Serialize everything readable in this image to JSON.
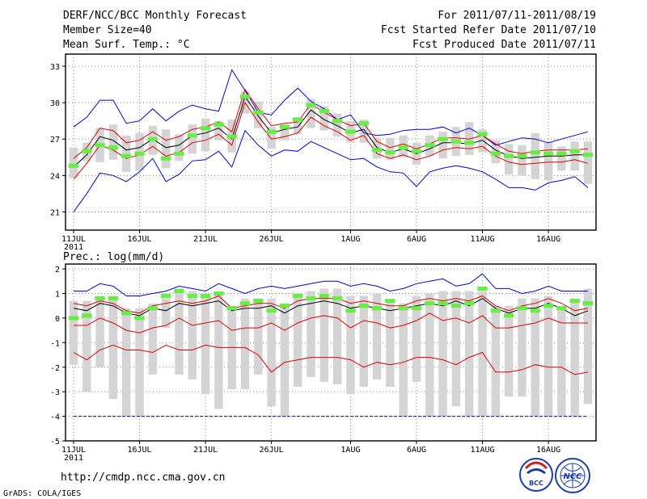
{
  "header": {
    "title": "DERF/NCC/BCC Monthly Forecast",
    "member_size": "Member Size=40",
    "variable": "Mean Surf. Temp.: °C",
    "period": "For 2011/07/11-2011/08/19",
    "start_date": "Fcst Started Refer Date 2011/07/10",
    "produced_date": "Fcst Produced Date 2011/07/11"
  },
  "footer": {
    "url": "http://cmdp.ncc.cma.gov.cn",
    "credit": "GrADS: COLA/IGES",
    "logo_left": "BCC",
    "logo_right": "NCC"
  },
  "colors": {
    "box": "#d4d4d4",
    "median": "#66ee44",
    "envelope": "#0000dd",
    "mean": "#000000",
    "spread": "#dd0000",
    "floor": "#0000dd"
  },
  "chart_data": [
    {
      "type": "line",
      "title": "Mean Surf. Temp.: °C",
      "x_labels": [
        "11JUL",
        "16JUL",
        "21JUL",
        "26JUL",
        "1AUG",
        "6AUG",
        "11AUG",
        "16AUG"
      ],
      "x_label_days": [
        1,
        6,
        11,
        16,
        22,
        27,
        32,
        37
      ],
      "year_label": "2011",
      "days": 40,
      "ylim": [
        19.5,
        34
      ],
      "yticks": [
        21,
        24,
        27,
        30,
        33
      ],
      "series": [
        {
          "name": "max",
          "values": [
            28.0,
            28.8,
            30.2,
            30.2,
            28.3,
            28.5,
            29.5,
            28.5,
            29.3,
            29.8,
            29.5,
            29.3,
            32.7,
            31.0,
            29.2,
            29.0,
            30.2,
            31.2,
            30.1,
            29.5,
            28.6,
            29.0,
            27.5,
            27.3,
            27.4,
            27.7,
            27.8,
            27.8,
            28.0,
            27.5,
            27.9,
            27.3,
            26.5,
            26.8,
            27.1,
            27.0,
            26.7,
            27.0,
            27.3,
            27.6
          ]
        },
        {
          "name": "upper",
          "values": [
            25.4,
            26.3,
            27.9,
            27.7,
            26.7,
            26.9,
            27.6,
            26.9,
            27.2,
            27.8,
            28.0,
            28.4,
            27.6,
            31.1,
            29.5,
            28.1,
            28.3,
            28.4,
            29.9,
            29.2,
            28.6,
            28.1,
            28.3,
            26.8,
            26.3,
            26.6,
            26.2,
            26.6,
            27.1,
            27.1,
            27.0,
            27.3,
            26.6,
            26.0,
            25.8,
            26.0,
            26.1,
            26.1,
            26.1,
            26.2
          ]
        },
        {
          "name": "mean",
          "values": [
            24.7,
            25.7,
            27.2,
            26.9,
            26.1,
            26.3,
            27.0,
            26.3,
            26.5,
            27.3,
            27.5,
            27.9,
            27.0,
            30.5,
            28.9,
            27.5,
            27.8,
            28.0,
            29.4,
            28.6,
            28.1,
            27.5,
            27.8,
            26.3,
            25.9,
            26.2,
            25.8,
            26.2,
            26.7,
            26.7,
            26.6,
            26.9,
            26.1,
            25.6,
            25.4,
            25.5,
            25.6,
            25.6,
            25.7,
            25.7
          ]
        },
        {
          "name": "lower",
          "values": [
            23.7,
            25.0,
            26.5,
            26.1,
            25.4,
            25.7,
            26.4,
            25.6,
            25.9,
            26.7,
            26.9,
            27.4,
            26.5,
            30.0,
            28.4,
            27.0,
            27.2,
            27.5,
            28.8,
            28.1,
            27.6,
            26.9,
            27.3,
            25.8,
            25.4,
            25.7,
            25.3,
            25.6,
            26.1,
            26.3,
            26.2,
            26.4,
            25.6,
            25.1,
            24.9,
            25.0,
            25.1,
            25.1,
            25.3,
            25.0
          ]
        },
        {
          "name": "min",
          "values": [
            21.0,
            22.5,
            24.2,
            24.0,
            23.5,
            24.3,
            25.4,
            23.5,
            24.1,
            25.2,
            25.3,
            26.0,
            24.7,
            27.7,
            26.5,
            25.6,
            26.1,
            26.0,
            26.8,
            26.3,
            25.8,
            25.3,
            25.4,
            24.7,
            24.3,
            24.2,
            23.1,
            24.3,
            24.6,
            24.8,
            24.6,
            24.3,
            23.7,
            23.0,
            23.0,
            22.8,
            23.4,
            23.6,
            23.9,
            23.0
          ]
        },
        {
          "name": "box_high",
          "values": [
            26.3,
            26.7,
            27.9,
            28.2,
            27.3,
            27.5,
            28.1,
            27.8,
            27.4,
            28.2,
            28.7,
            28.5,
            28.6,
            30.9,
            30.1,
            28.0,
            28.2,
            28.8,
            30.3,
            29.7,
            29.1,
            28.5,
            28.6,
            27.1,
            27.1,
            27.3,
            26.7,
            27.3,
            27.6,
            28.0,
            28.4,
            27.8,
            26.9,
            26.6,
            26.5,
            27.5,
            26.7,
            26.4,
            26.8,
            26.8
          ]
        },
        {
          "name": "box_low",
          "values": [
            23.8,
            25.2,
            25.1,
            25.3,
            24.3,
            24.4,
            25.7,
            24.6,
            25.2,
            25.8,
            26.0,
            26.9,
            25.9,
            29.1,
            27.9,
            26.2,
            26.9,
            27.4,
            27.9,
            27.7,
            27.2,
            26.7,
            26.7,
            25.4,
            25.3,
            25.5,
            24.9,
            25.6,
            25.4,
            25.6,
            25.7,
            25.9,
            25.0,
            24.1,
            24.0,
            23.7,
            23.6,
            24.4,
            24.4,
            23.3
          ]
        },
        {
          "name": "median",
          "values": [
            24.8,
            26.0,
            26.5,
            26.3,
            25.6,
            25.8,
            27.0,
            25.4,
            25.8,
            27.3,
            27.9,
            28.2,
            27.2,
            30.5,
            29.2,
            27.6,
            28.0,
            28.6,
            29.8,
            29.3,
            28.5,
            27.6,
            28.3,
            26.1,
            25.9,
            26.3,
            26.0,
            26.5,
            27.0,
            26.8,
            26.7,
            27.4,
            25.8,
            25.6,
            25.6,
            25.9,
            25.8,
            25.8,
            26.0,
            25.7
          ]
        }
      ]
    },
    {
      "type": "line",
      "title": "Prec.: log(mm/d)",
      "x_labels": [
        "11JUL",
        "16JUL",
        "21JUL",
        "26JUL",
        "1AUG",
        "6AUG",
        "11AUG",
        "16AUG"
      ],
      "x_label_days": [
        1,
        6,
        11,
        16,
        22,
        27,
        32,
        37
      ],
      "year_label": "2011",
      "days": 40,
      "ylim": [
        -5,
        2.2
      ],
      "yticks": [
        -5,
        -4,
        -3,
        -2,
        -1,
        0,
        1,
        2
      ],
      "series": [
        {
          "name": "max",
          "values": [
            1.1,
            1.1,
            1.4,
            1.3,
            0.9,
            0.9,
            1.0,
            1.1,
            1.3,
            1.2,
            1.1,
            1.4,
            1.2,
            1.0,
            1.2,
            1.3,
            1.2,
            1.3,
            1.4,
            1.5,
            1.5,
            1.3,
            1.4,
            1.3,
            1.1,
            1.2,
            1.4,
            1.5,
            1.6,
            1.3,
            1.4,
            1.8,
            1.2,
            1.2,
            1.0,
            1.1,
            1.3,
            1.1,
            1.1,
            1.1
          ]
        },
        {
          "name": "upper",
          "values": [
            0.6,
            0.5,
            0.7,
            0.6,
            0.3,
            0.2,
            0.5,
            0.6,
            0.7,
            0.6,
            0.7,
            0.9,
            0.4,
            0.5,
            0.6,
            0.6,
            0.4,
            0.7,
            0.8,
            0.8,
            0.8,
            0.6,
            0.7,
            0.6,
            0.5,
            0.5,
            0.7,
            0.8,
            0.7,
            0.8,
            0.7,
            0.9,
            0.5,
            0.3,
            0.5,
            0.6,
            0.8,
            0.6,
            0.3,
            0.4
          ]
        },
        {
          "name": "mean",
          "values": [
            0.4,
            0.3,
            0.6,
            0.5,
            0.2,
            0.1,
            0.4,
            0.3,
            0.6,
            0.5,
            0.6,
            0.7,
            0.3,
            0.4,
            0.4,
            0.5,
            0.2,
            0.5,
            0.6,
            0.7,
            0.6,
            0.4,
            0.5,
            0.4,
            0.3,
            0.4,
            0.5,
            0.6,
            0.5,
            0.7,
            0.5,
            0.8,
            0.4,
            0.2,
            0.4,
            0.4,
            0.6,
            0.4,
            0.1,
            0.3
          ]
        },
        {
          "name": "lower",
          "values": [
            -0.3,
            -0.3,
            0.0,
            -0.2,
            -0.5,
            -0.6,
            -0.4,
            -0.3,
            0.0,
            -0.3,
            -0.2,
            -0.1,
            -0.5,
            -0.4,
            -0.4,
            -0.2,
            -0.5,
            -0.2,
            0.0,
            0.1,
            0.0,
            -0.4,
            -0.1,
            -0.2,
            -0.4,
            -0.3,
            -0.1,
            0.2,
            -0.1,
            0.0,
            -0.2,
            0.1,
            -0.4,
            -0.4,
            -0.3,
            -0.2,
            0.0,
            -0.2,
            -0.2,
            -0.2
          ]
        },
        {
          "name": "p10",
          "values": [
            -1.4,
            -1.7,
            -1.3,
            -1.1,
            -1.3,
            -1.3,
            -1.4,
            -1.1,
            -1.3,
            -1.3,
            -1.1,
            -1.2,
            -1.2,
            -1.2,
            -1.5,
            -2.2,
            -1.8,
            -1.7,
            -1.6,
            -1.6,
            -1.6,
            -1.7,
            -2.0,
            -1.8,
            -1.9,
            -1.8,
            -1.6,
            -1.6,
            -1.7,
            -1.9,
            -1.6,
            -1.4,
            -2.2,
            -2.2,
            -2.1,
            -1.9,
            -2.0,
            -2.0,
            -2.3,
            -2.2
          ]
        },
        {
          "name": "floor",
          "values": [
            -4,
            -4,
            -4,
            -4,
            -4,
            -4,
            -4,
            -4,
            -4,
            -4,
            -4,
            -4,
            -4,
            -4,
            -4,
            -4,
            -4,
            -4,
            -4,
            -4,
            -4,
            -4,
            -4,
            -4,
            -4,
            -4,
            -4,
            -4,
            -4,
            -4,
            -4,
            -4,
            -4,
            -4,
            -4,
            -4,
            -4,
            -4,
            -4,
            -4
          ]
        },
        {
          "name": "box_high",
          "values": [
            0.7,
            0.7,
            0.9,
            0.9,
            0.4,
            0.4,
            0.6,
            0.8,
            1.2,
            1.1,
            1.0,
            1.0,
            0.5,
            0.8,
            0.8,
            0.8,
            0.6,
            1.0,
            1.1,
            1.2,
            1.2,
            0.9,
            0.9,
            1.0,
            0.7,
            0.6,
            0.9,
            1.0,
            1.1,
            1.1,
            1.1,
            1.1,
            0.5,
            0.5,
            0.8,
            0.8,
            0.9,
            0.5,
            0.8,
            1.2
          ]
        },
        {
          "name": "box_low",
          "values": [
            -1.9,
            -3.0,
            -2.0,
            -3.3,
            -4.0,
            -4.0,
            -2.3,
            -0.4,
            -2.3,
            -2.5,
            -3.1,
            -3.7,
            -2.9,
            -2.9,
            -2.3,
            -3.6,
            -4.0,
            -2.8,
            -2.4,
            -2.6,
            -2.7,
            -3.1,
            -2.8,
            -2.5,
            -2.8,
            -4.0,
            -2.6,
            -4.0,
            -4.0,
            -3.6,
            -4.0,
            -4.0,
            -4.0,
            -3.2,
            -3.2,
            -4.0,
            -4.0,
            -4.0,
            -4.0,
            -3.5
          ]
        },
        {
          "name": "median",
          "values": [
            0.0,
            0.1,
            0.8,
            0.8,
            0.2,
            0.0,
            0.4,
            0.9,
            1.1,
            0.9,
            0.9,
            1.0,
            0.4,
            0.6,
            0.7,
            0.3,
            0.5,
            0.9,
            0.8,
            0.9,
            0.8,
            0.3,
            0.5,
            0.4,
            0.7,
            0.4,
            0.4,
            0.6,
            0.6,
            0.5,
            0.6,
            1.2,
            0.3,
            0.1,
            0.4,
            0.3,
            0.5,
            0.4,
            0.7,
            0.6
          ]
        }
      ]
    }
  ]
}
